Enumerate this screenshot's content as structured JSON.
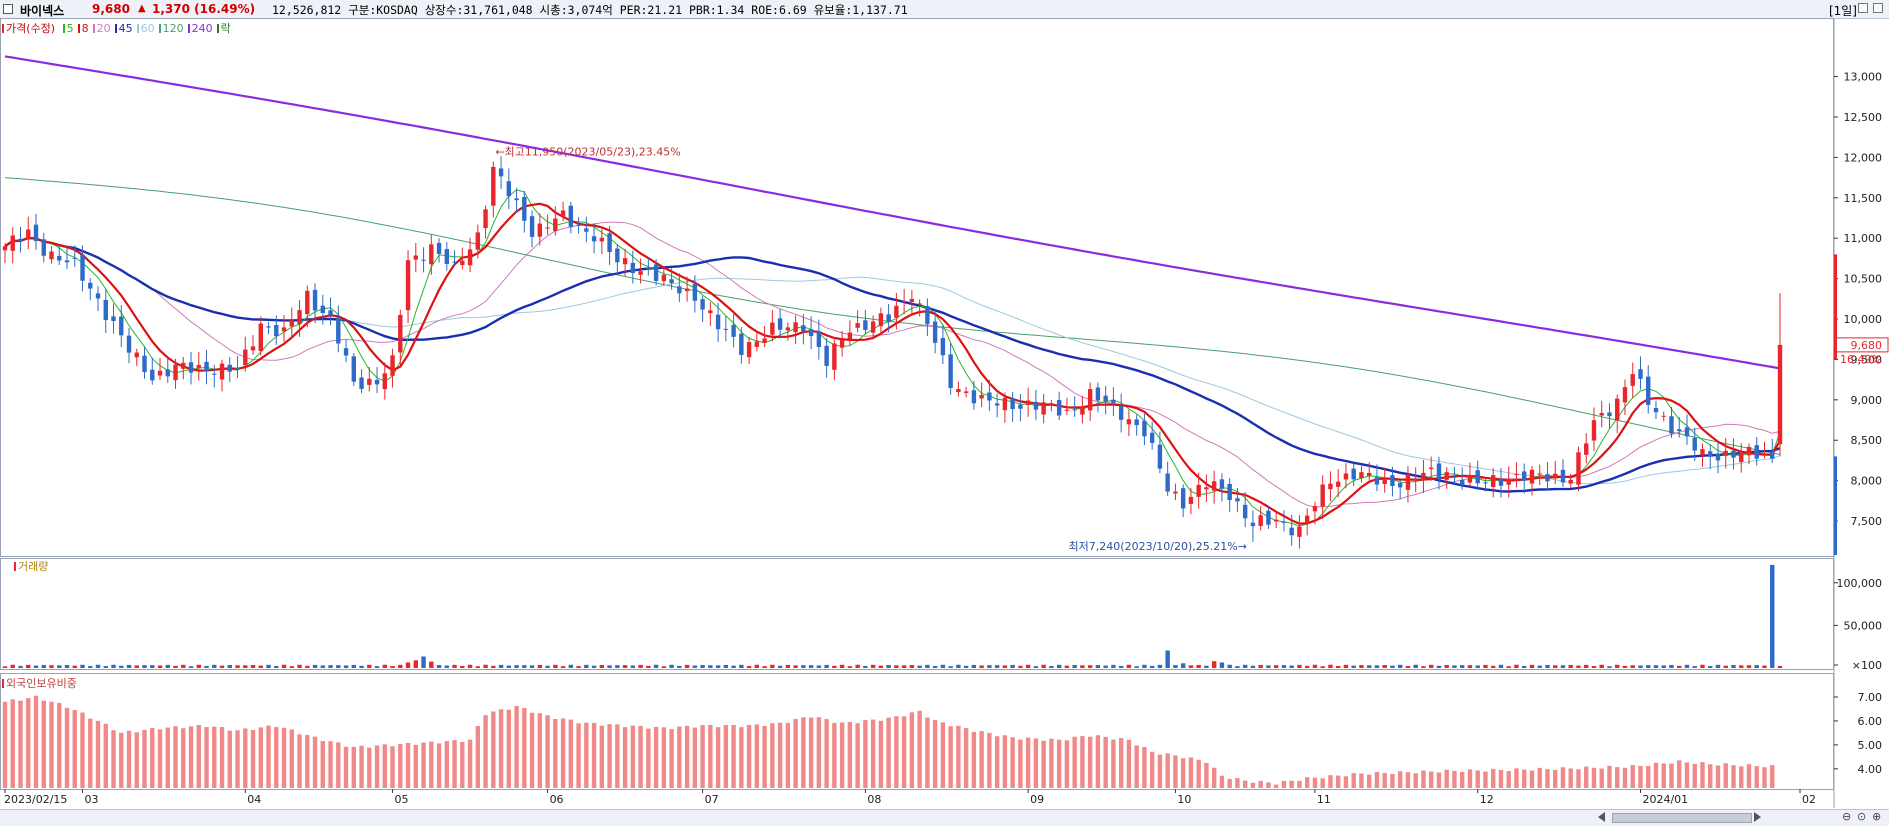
{
  "header": {
    "name": "바이넥스",
    "price": "9,680",
    "arrow": "▲",
    "change": "1,370 (16.49%)",
    "info": "12,526,812  구분:KOSDAQ 상장수:31,761,048 시총:3,074억 PER:21.21 PBR:1.34 ROE:6.69 유보율:1,137.71",
    "period": "[1일]"
  },
  "legend": {
    "price_label": "가격(수정)",
    "ma": [
      {
        "label": "5",
        "color": "#2ab52a"
      },
      {
        "label": "8",
        "color": "#dd1111"
      },
      {
        "label": "20",
        "color": "#d07ab8"
      },
      {
        "label": "45",
        "color": "#1a2fb0"
      },
      {
        "label": "60",
        "color": "#9ec8e0"
      },
      {
        "label": "120",
        "color": "#4aa070"
      },
      {
        "label": "240",
        "color": "#8a2be2"
      },
      {
        "label": "락",
        "color": "#2a7a2a"
      }
    ],
    "volume_label": "거래량",
    "foreign_label": "외국인보유비중"
  },
  "chart_data": {
    "type": "candlestick",
    "colors": {
      "up": "#e8262b",
      "down": "#2e6ac7",
      "ma5": "#2ab52a",
      "ma8": "#dd1111",
      "ma20": "#d07ab8",
      "ma45": "#1a2fb0",
      "ma60": "#9ec8e0",
      "ma120": "#4aa070",
      "ma240": "#8a2be2",
      "foreign": "#f08a8a"
    },
    "y_ticks": [
      13000,
      12500,
      12000,
      11500,
      11000,
      10500,
      10000,
      9500,
      9000,
      8500,
      8000,
      7500
    ],
    "y_tick_labels": [
      "13,000",
      "12,500",
      "12,000",
      "11,500",
      "11,000",
      "10,500",
      "10,000",
      "9,500",
      "9,000",
      "8,500",
      "8,000",
      "7,500"
    ],
    "ylim": [
      7080,
      13700
    ],
    "x_tick_labels": [
      "2023/02/15",
      "03",
      "04",
      "05",
      "06",
      "07",
      "08",
      "09",
      "10",
      "11",
      "12",
      "2024/01",
      "02"
    ],
    "x_tick_index": [
      0,
      10,
      31,
      50,
      70,
      90,
      111,
      132,
      151,
      169,
      190,
      211,
      231
    ],
    "anchors": [
      [
        0,
        10900
      ],
      [
        3,
        11050
      ],
      [
        6,
        10800
      ],
      [
        9,
        10650
      ],
      [
        12,
        10250
      ],
      [
        16,
        9600
      ],
      [
        19,
        9300
      ],
      [
        22,
        9380
      ],
      [
        26,
        9400
      ],
      [
        30,
        9350
      ],
      [
        33,
        9950
      ],
      [
        36,
        9800
      ],
      [
        39,
        10300
      ],
      [
        42,
        10000
      ],
      [
        45,
        9200
      ],
      [
        48,
        9250
      ],
      [
        50,
        9450
      ],
      [
        52,
        10700
      ],
      [
        55,
        10900
      ],
      [
        58,
        10600
      ],
      [
        61,
        11050
      ],
      [
        63,
        11850
      ],
      [
        66,
        11400
      ],
      [
        68,
        11100
      ],
      [
        72,
        11250
      ],
      [
        76,
        11050
      ],
      [
        79,
        10700
      ],
      [
        83,
        10600
      ],
      [
        86,
        10400
      ],
      [
        89,
        10300
      ],
      [
        92,
        9900
      ],
      [
        95,
        9650
      ],
      [
        99,
        9850
      ],
      [
        103,
        9950
      ],
      [
        106,
        9450
      ],
      [
        109,
        9900
      ],
      [
        114,
        10000
      ],
      [
        117,
        10350
      ],
      [
        119,
        9950
      ],
      [
        122,
        9200
      ],
      [
        127,
        8950
      ],
      [
        132,
        8950
      ],
      [
        137,
        8850
      ],
      [
        140,
        9050
      ],
      [
        144,
        8850
      ],
      [
        147,
        8600
      ],
      [
        150,
        7900
      ],
      [
        152,
        7750
      ],
      [
        155,
        7950
      ],
      [
        158,
        7850
      ],
      [
        161,
        7450
      ],
      [
        164,
        7500
      ],
      [
        167,
        7400
      ],
      [
        171,
        8000
      ],
      [
        174,
        8100
      ],
      [
        178,
        7950
      ],
      [
        182,
        8050
      ],
      [
        186,
        8100
      ],
      [
        190,
        7950
      ],
      [
        194,
        8050
      ],
      [
        198,
        8050
      ],
      [
        202,
        8050
      ],
      [
        205,
        8700
      ],
      [
        208,
        9000
      ],
      [
        210,
        9350
      ],
      [
        212,
        8950
      ],
      [
        216,
        8600
      ],
      [
        219,
        8300
      ],
      [
        223,
        8350
      ],
      [
        227,
        8300
      ]
    ],
    "last_candle": {
      "open": 8450,
      "high": 10320,
      "low": 8300,
      "close": 9680
    },
    "annotations": {
      "high_text": "최고11,950(2023/05/23),23.45%",
      "high_value": 11950,
      "high_index": 63,
      "low_text": "최저7,240(2023/10/20),25.21%",
      "low_value": 7240,
      "low_index": 161
    },
    "last_price_label": "9,680",
    "last_change_label": "16.49%",
    "volume": {
      "y_ticks": [
        100000,
        50000,
        100
      ],
      "y_tick_labels": [
        "100,000",
        "50,000",
        "×100"
      ],
      "ymax": 115000,
      "spikes": [
        [
          52,
          6500
        ],
        [
          53,
          9000
        ],
        [
          54,
          13500
        ],
        [
          55,
          7500
        ],
        [
          150,
          20500
        ],
        [
          152,
          5500
        ],
        [
          156,
          8000
        ],
        [
          157,
          6500
        ],
        [
          210,
          3200
        ],
        [
          228,
          121000
        ]
      ],
      "base_value": 2000
    },
    "foreign": {
      "y_ticks": [
        7.0,
        6.0,
        5.0,
        4.0
      ],
      "y_tick_labels": [
        "7.00",
        "6.00",
        "5.00",
        "4.00"
      ],
      "ylim": [
        3.2,
        7.5
      ],
      "anchors": [
        [
          0,
          6.8
        ],
        [
          4,
          7.0
        ],
        [
          8,
          6.6
        ],
        [
          12,
          6.0
        ],
        [
          15,
          5.5
        ],
        [
          20,
          5.7
        ],
        [
          26,
          5.8
        ],
        [
          30,
          5.6
        ],
        [
          35,
          5.8
        ],
        [
          40,
          5.3
        ],
        [
          45,
          4.9
        ],
        [
          50,
          5.0
        ],
        [
          55,
          5.1
        ],
        [
          60,
          5.2
        ],
        [
          62,
          6.3
        ],
        [
          66,
          6.6
        ],
        [
          70,
          6.2
        ],
        [
          75,
          5.9
        ],
        [
          80,
          5.8
        ],
        [
          85,
          5.7
        ],
        [
          90,
          5.8
        ],
        [
          96,
          5.8
        ],
        [
          100,
          5.9
        ],
        [
          104,
          6.2
        ],
        [
          108,
          5.9
        ],
        [
          114,
          6.1
        ],
        [
          118,
          6.4
        ],
        [
          120,
          6.0
        ],
        [
          125,
          5.6
        ],
        [
          130,
          5.3
        ],
        [
          136,
          5.2
        ],
        [
          140,
          5.4
        ],
        [
          145,
          5.2
        ],
        [
          148,
          4.7
        ],
        [
          152,
          4.5
        ],
        [
          155,
          4.3
        ],
        [
          157,
          3.7
        ],
        [
          160,
          3.5
        ],
        [
          164,
          3.4
        ],
        [
          168,
          3.6
        ],
        [
          175,
          3.8
        ],
        [
          185,
          3.9
        ],
        [
          200,
          4.0
        ],
        [
          210,
          4.1
        ],
        [
          216,
          4.3
        ],
        [
          220,
          4.2
        ],
        [
          228,
          4.1
        ]
      ]
    }
  }
}
